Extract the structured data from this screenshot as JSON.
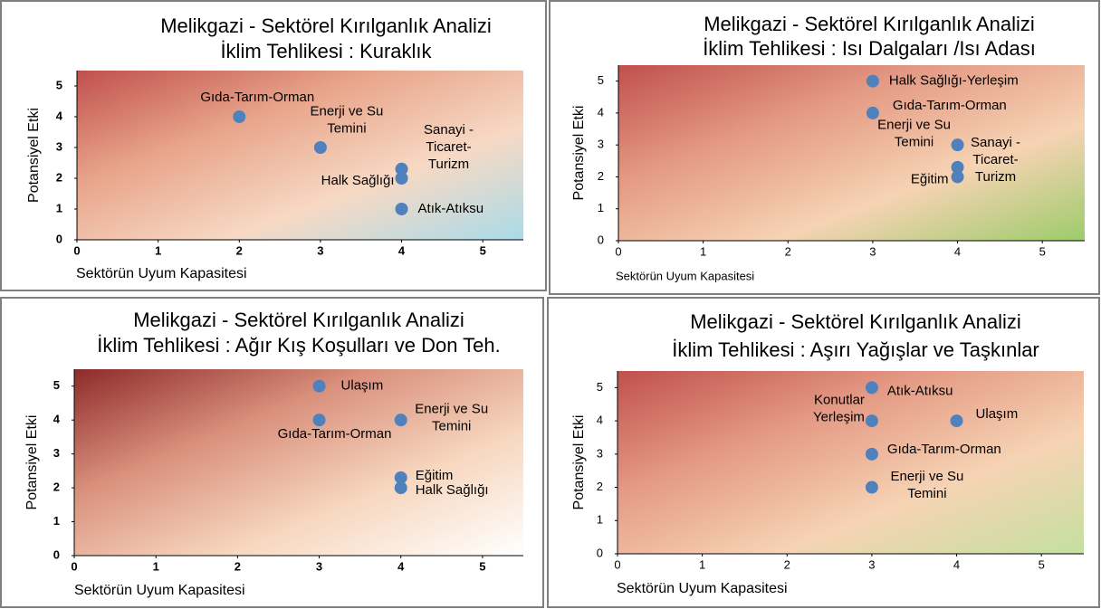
{
  "chart_data": [
    {
      "type": "scatter",
      "title": "Melikgazi - Sektörel  Kırılganlık Analizi",
      "subtitle": "İklim Tehlikesi : Kuraklık",
      "xlabel": "Sektörün Uyum Kapasitesi",
      "ylabel": "Potansiyel Etki",
      "x": [
        2,
        3,
        4,
        4,
        4
      ],
      "values": [
        4,
        3,
        2.3,
        2,
        1
      ],
      "point_labels": [
        [
          "Gıda-Tarım-Orman"
        ],
        [
          "Enerji ve Su",
          "Temini"
        ],
        [
          "Sanayi -",
          "Ticaret-",
          "Turizm"
        ],
        [
          "Halk Sağlığı"
        ],
        [
          "Atık-Atıksu"
        ]
      ],
      "color": "#4f81bd",
      "gradient": [
        "#c0504d",
        "#e8a48a",
        "#f7d9c4",
        "#a9dbe9"
      ],
      "xlim": [
        0,
        5.5
      ],
      "ylim": [
        0,
        5.5
      ],
      "xticks": [
        0,
        1,
        2,
        3,
        4,
        5
      ],
      "yticks": [
        0,
        1,
        2,
        3,
        4,
        5
      ]
    },
    {
      "type": "scatter",
      "title": "Melikgazi - Sektörel  Kırılganlık Analizi",
      "subtitle": "İklim Tehlikesi : Isı Dalgaları /Isı Adası",
      "xlabel": "Sektörün Uyum Kapasitesi",
      "ylabel": "Potansiyel Etki",
      "x": [
        3,
        3,
        4,
        4,
        4
      ],
      "values": [
        5,
        4,
        3,
        2.3,
        2
      ],
      "point_labels": [
        [
          "Halk Sağlığı-Yerleşim"
        ],
        [
          "Gıda-Tarım-Orman"
        ],
        [
          "Enerji ve Su",
          "Temini"
        ],
        [
          "Sanayi -",
          "Ticaret-",
          "Turizm"
        ],
        [
          "Eğitim"
        ]
      ],
      "color": "#4f81bd",
      "gradient": [
        "#c0504d",
        "#e49a84",
        "#f6d3b4",
        "#9ccc6a"
      ],
      "xlim": [
        0,
        5.5
      ],
      "ylim": [
        0,
        5.5
      ],
      "xticks": [
        0,
        1,
        2,
        3,
        4,
        5
      ],
      "yticks": [
        0,
        1,
        2,
        3,
        4,
        5
      ]
    },
    {
      "type": "scatter",
      "title": "Melikgazi - Sektörel  Kırılganlık Analizi",
      "subtitle": "İklim Tehlikesi : Ağır Kış Koşulları ve Don Teh.",
      "xlabel": "Sektörün Uyum Kapasitesi",
      "ylabel": "Potansiyel Etki",
      "x": [
        3,
        3,
        4,
        4,
        4
      ],
      "values": [
        5,
        4,
        4,
        2.3,
        2
      ],
      "point_labels": [
        [
          "Ulaşım"
        ],
        [
          "Gıda-Tarım-Orman"
        ],
        [
          "Enerji ve Su",
          "Temini"
        ],
        [
          "Eğitim"
        ],
        [
          "Halk Sağlığı"
        ]
      ],
      "color": "#4f81bd",
      "gradient": [
        "#8e2a2a",
        "#d9907c",
        "#f7d7bf",
        "#ffffff"
      ],
      "xlim": [
        0,
        5.5
      ],
      "ylim": [
        0,
        5.5
      ],
      "xticks": [
        0,
        1,
        2,
        3,
        4,
        5
      ],
      "yticks": [
        0,
        1,
        2,
        3,
        4,
        5
      ]
    },
    {
      "type": "scatter",
      "title": "Melikgazi - Sektörel  Kırılganlık Analizi",
      "subtitle": "İklim Tehlikesi : Aşırı Yağışlar ve Taşkınlar",
      "xlabel": "Sektörün Uyum Kapasitesi",
      "ylabel": "Potansiyel Etki",
      "x": [
        3,
        3,
        4,
        3,
        3
      ],
      "values": [
        5,
        4,
        4,
        3,
        2
      ],
      "point_labels": [
        [
          "Atık-Atıksu"
        ],
        [
          "Konutlar",
          "Yerleşim"
        ],
        [
          "Ulaşım"
        ],
        [
          "Gıda-Tarım-Orman"
        ],
        [
          "Enerji ve Su",
          "Temini"
        ]
      ],
      "color": "#4f81bd",
      "gradient": [
        "#c0504d",
        "#e49a84",
        "#f6d3b4",
        "#c4e0a0"
      ],
      "xlim": [
        0,
        5.5
      ],
      "ylim": [
        0,
        5.5
      ],
      "xticks": [
        0,
        1,
        2,
        3,
        4,
        5
      ],
      "yticks": [
        0,
        1,
        2,
        3,
        4,
        5
      ]
    }
  ]
}
